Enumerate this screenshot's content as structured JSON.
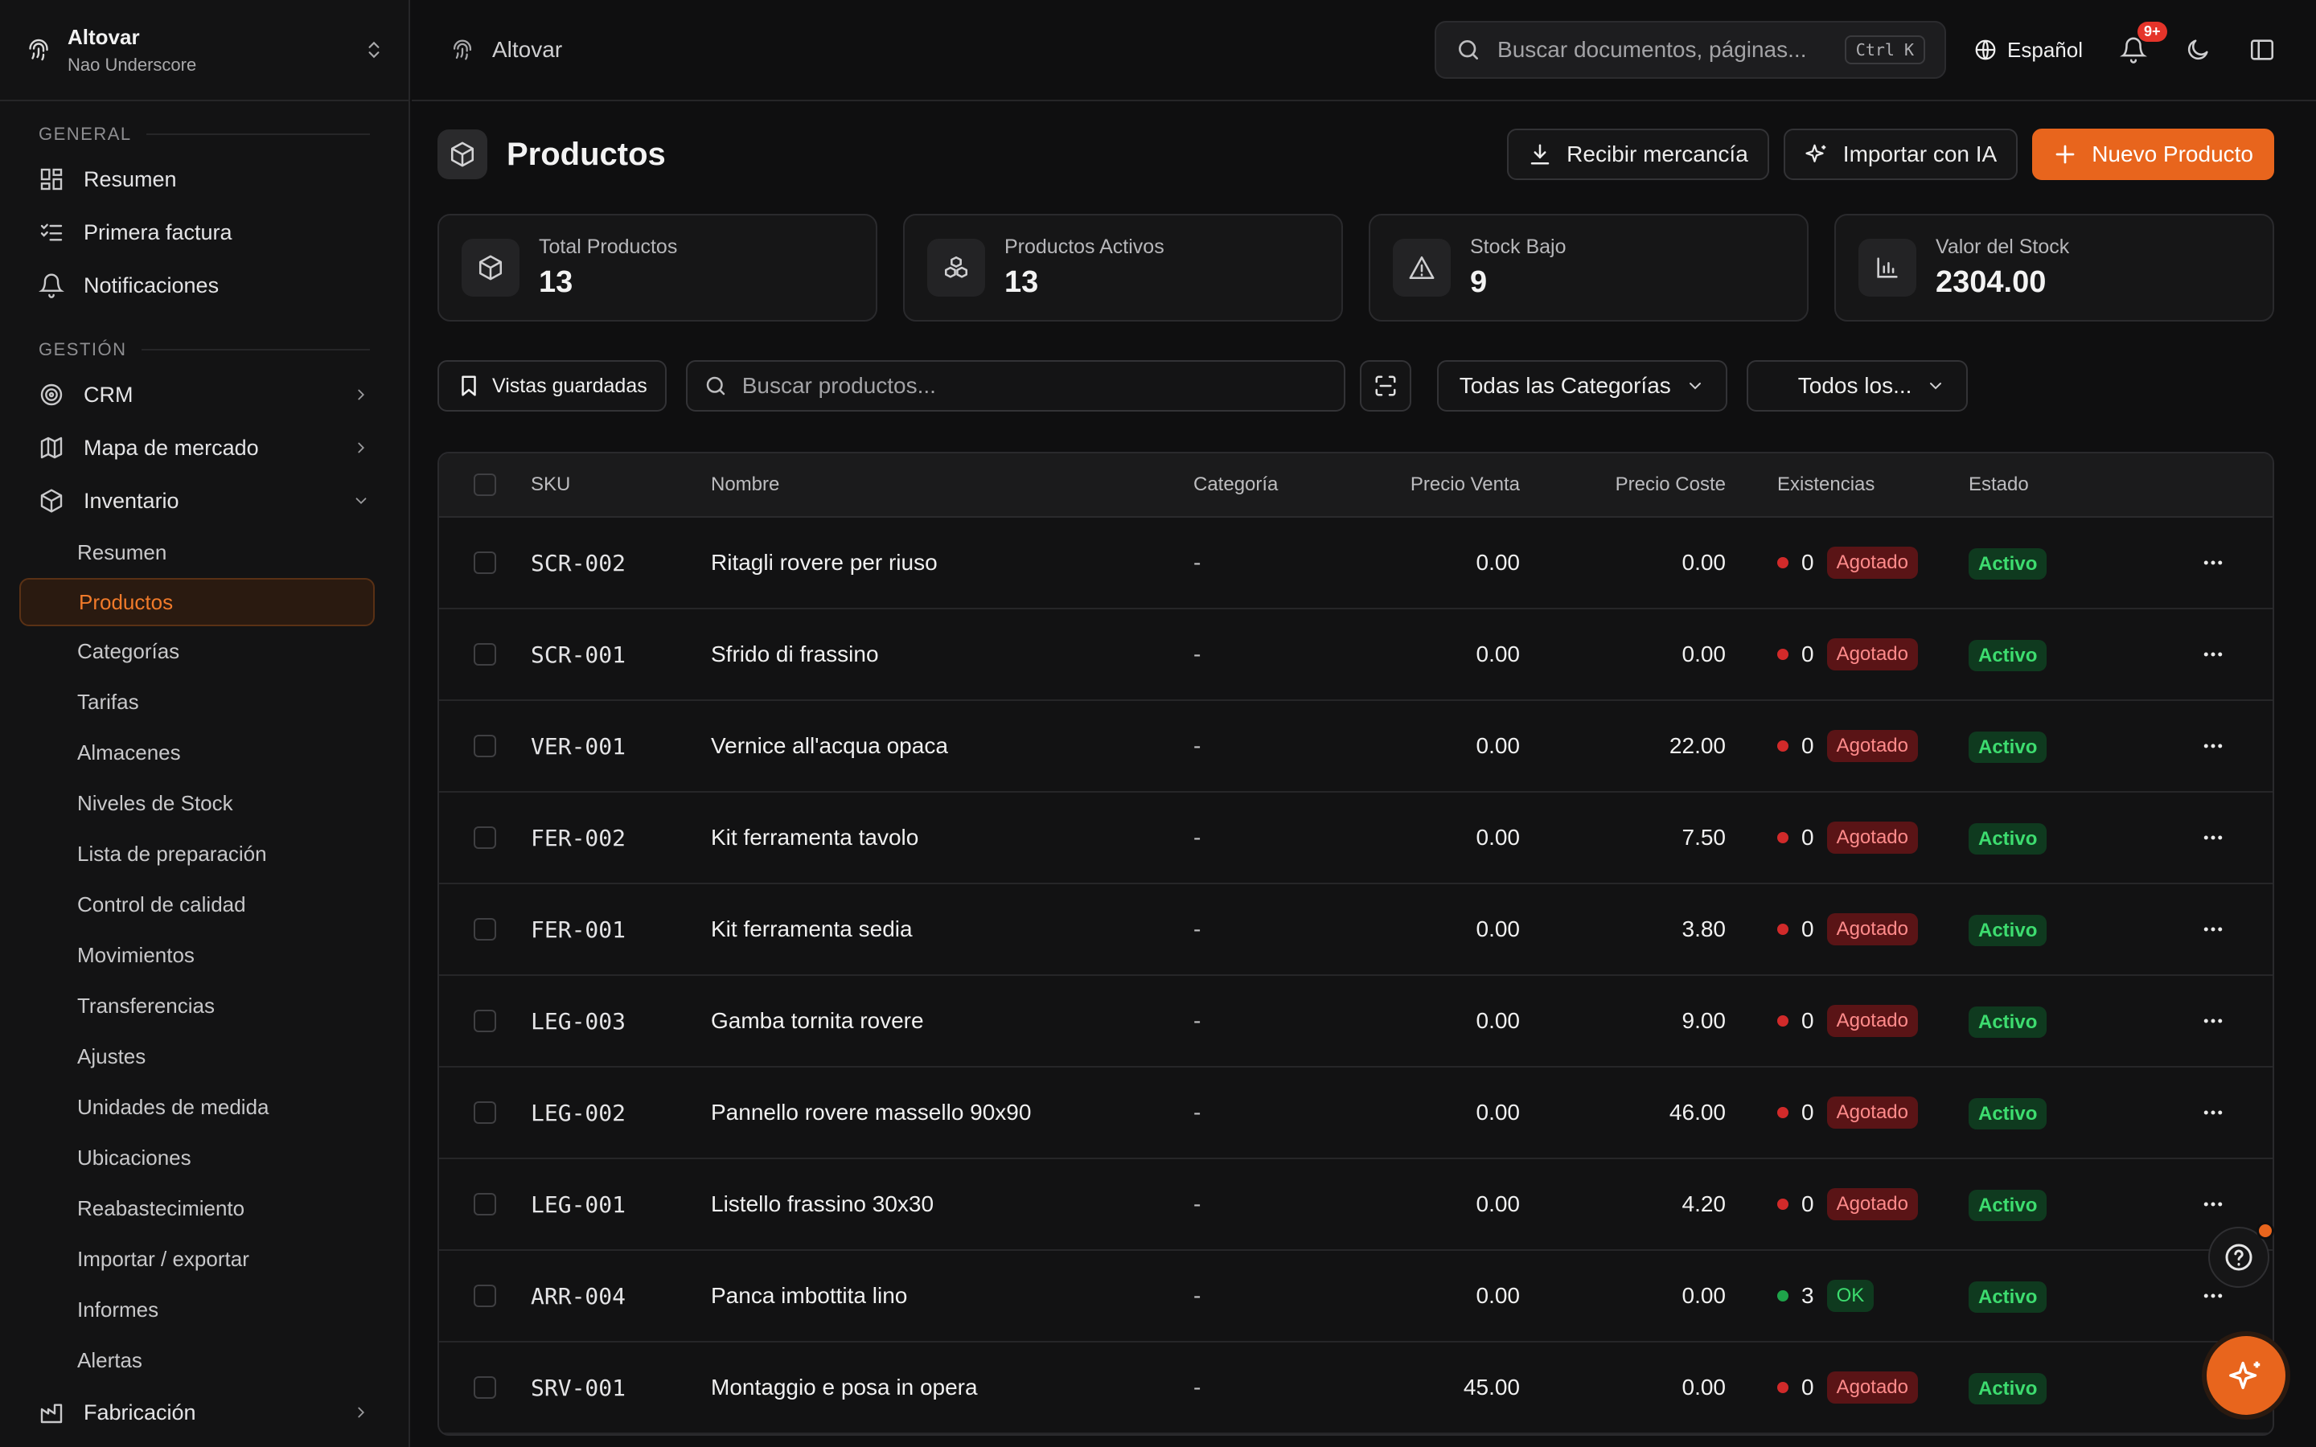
{
  "workspace": {
    "name": "Altovar",
    "user": "Nao Underscore"
  },
  "sidebar": {
    "general_label": "GENERAL",
    "general": [
      {
        "label": "Resumen",
        "icon": "dashboard-icon"
      },
      {
        "label": "Primera factura",
        "icon": "checklist-icon"
      },
      {
        "label": "Notificaciones",
        "icon": "bell-icon"
      }
    ],
    "gestion_label": "GESTIÓN",
    "gestion": [
      {
        "label": "CRM",
        "icon": "target-icon"
      },
      {
        "label": "Mapa de mercado",
        "icon": "map-icon"
      },
      {
        "label": "Inventario",
        "icon": "box-icon"
      }
    ],
    "inventario_items": [
      "Resumen",
      "Productos",
      "Categorías",
      "Tarifas",
      "Almacenes",
      "Niveles de Stock",
      "Lista de preparación",
      "Control de calidad",
      "Movimientos",
      "Transferencias",
      "Ajustes",
      "Unidades de medida",
      "Ubicaciones",
      "Reabastecimiento",
      "Importar / exportar",
      "Informes",
      "Alertas"
    ],
    "active_item": "Productos",
    "bottom": {
      "label": "Fabricación",
      "icon": "factory-icon"
    }
  },
  "topbar": {
    "breadcrumb": "Altovar",
    "search_placeholder": "Buscar documentos, páginas...",
    "shortcut": "Ctrl K",
    "language": "Español",
    "notifications_badge": "9+"
  },
  "page": {
    "title": "Productos",
    "buttons": {
      "receive": "Recibir mercancía",
      "import_ai": "Importar con IA",
      "new_product": "Nuevo Producto"
    }
  },
  "stats": [
    {
      "label": "Total Productos",
      "value": "13",
      "icon": "box-icon"
    },
    {
      "label": "Productos Activos",
      "value": "13",
      "icon": "boxes-icon"
    },
    {
      "label": "Stock Bajo",
      "value": "9",
      "icon": "warning-icon"
    },
    {
      "label": "Valor del Stock",
      "value": "2304.00",
      "icon": "bar-chart-icon"
    }
  ],
  "filters": {
    "saved_views": "Vistas guardadas",
    "search_placeholder": "Buscar productos...",
    "category": "Todas las Categorías",
    "status": "Todos los..."
  },
  "table": {
    "headers": {
      "sku": "SKU",
      "name": "Nombre",
      "category": "Categoría",
      "sale_price": "Precio Venta",
      "cost_price": "Precio Coste",
      "stock": "Existencias",
      "status": "Estado"
    },
    "rows": [
      {
        "sku": "SCR-002",
        "name": "Ritagli rovere per riuso",
        "category": "-",
        "sale": "0.00",
        "cost": "0.00",
        "qty": "0",
        "stock_badge": "Agotado",
        "stock_state": "out",
        "status": "Activo"
      },
      {
        "sku": "SCR-001",
        "name": "Sfrido di frassino",
        "category": "-",
        "sale": "0.00",
        "cost": "0.00",
        "qty": "0",
        "stock_badge": "Agotado",
        "stock_state": "out",
        "status": "Activo"
      },
      {
        "sku": "VER-001",
        "name": "Vernice all'acqua opaca",
        "category": "-",
        "sale": "0.00",
        "cost": "22.00",
        "qty": "0",
        "stock_badge": "Agotado",
        "stock_state": "out",
        "status": "Activo"
      },
      {
        "sku": "FER-002",
        "name": "Kit ferramenta tavolo",
        "category": "-",
        "sale": "0.00",
        "cost": "7.50",
        "qty": "0",
        "stock_badge": "Agotado",
        "stock_state": "out",
        "status": "Activo"
      },
      {
        "sku": "FER-001",
        "name": "Kit ferramenta sedia",
        "category": "-",
        "sale": "0.00",
        "cost": "3.80",
        "qty": "0",
        "stock_badge": "Agotado",
        "stock_state": "out",
        "status": "Activo"
      },
      {
        "sku": "LEG-003",
        "name": "Gamba tornita rovere",
        "category": "-",
        "sale": "0.00",
        "cost": "9.00",
        "qty": "0",
        "stock_badge": "Agotado",
        "stock_state": "out",
        "status": "Activo"
      },
      {
        "sku": "LEG-002",
        "name": "Pannello rovere massello 90x90",
        "category": "-",
        "sale": "0.00",
        "cost": "46.00",
        "qty": "0",
        "stock_badge": "Agotado",
        "stock_state": "out",
        "status": "Activo"
      },
      {
        "sku": "LEG-001",
        "name": "Listello frassino 30x30",
        "category": "-",
        "sale": "0.00",
        "cost": "4.20",
        "qty": "0",
        "stock_badge": "Agotado",
        "stock_state": "out",
        "status": "Activo"
      },
      {
        "sku": "ARR-004",
        "name": "Panca imbottita lino",
        "category": "-",
        "sale": "0.00",
        "cost": "0.00",
        "qty": "3",
        "stock_badge": "OK",
        "stock_state": "ok",
        "status": "Activo"
      },
      {
        "sku": "SRV-001",
        "name": "Montaggio e posa in opera",
        "category": "-",
        "sale": "45.00",
        "cost": "0.00",
        "qty": "0",
        "stock_badge": "Agotado",
        "stock_state": "out",
        "status": "Activo"
      }
    ]
  },
  "colors": {
    "accent": "#e8651d",
    "danger": "#d12a2a",
    "success": "#1fa34a",
    "background": "#0f0f10"
  }
}
